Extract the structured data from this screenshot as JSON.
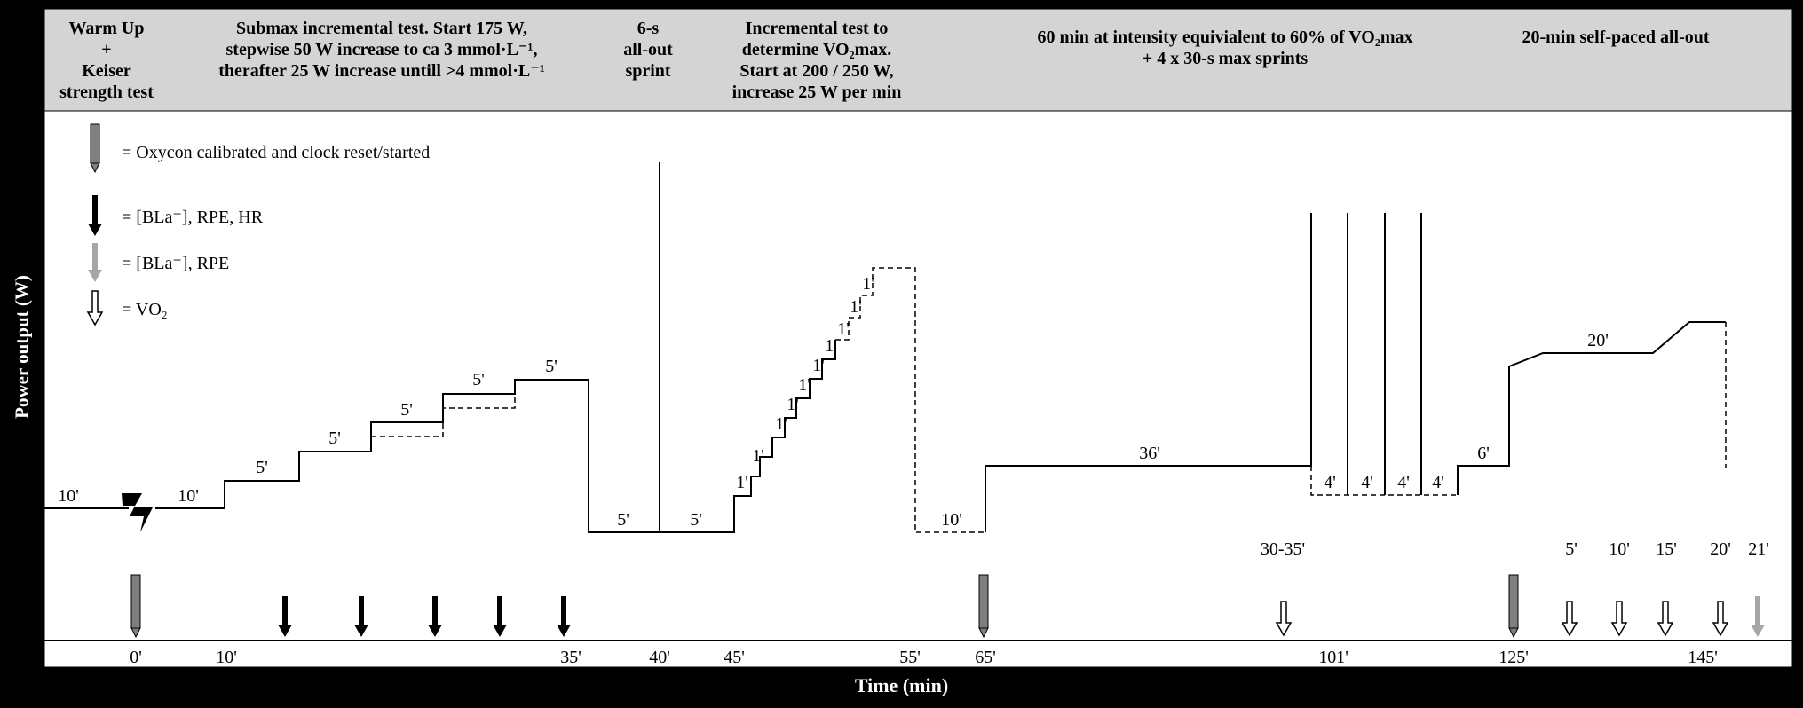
{
  "y_axis_label": "Power output (W)",
  "x_axis_label": "Time (min)",
  "header": {
    "warmup": [
      "Warm Up",
      "+",
      "Keiser",
      "strength test"
    ],
    "submax": [
      "Submax incremental test. Start 175 W,",
      "stepwise 50 W increase to ca 3 mmol·L⁻¹,",
      "therafter 25 W increase untill >4 mmol·L⁻¹"
    ],
    "sprint": [
      "6-s",
      "all-out",
      "sprint"
    ],
    "incremental": [
      "Incremental test to",
      "determine VO₂max.",
      "Start at 200 / 250 W,",
      "increase 25 W per min"
    ],
    "sixty": [
      "60 min at intensity equivialent to 60% of VO₂max",
      "+ 4 x 30-s max sprints"
    ],
    "selfpaced": [
      "20-min self-paced all-out"
    ]
  },
  "legend": {
    "oxycon": "= Oxycon calibrated and clock reset/started",
    "bla_rpe_hr": "= [BLa⁻], RPE, HR",
    "bla_rpe": "= [BLa⁻], RPE",
    "vo2": "= VO₂"
  },
  "segment_labels": [
    "10'",
    "10'",
    "5'",
    "5'",
    "5'",
    "5'",
    "5'",
    "5'",
    "5'",
    "1'",
    "1'",
    "1'",
    "1'",
    "1'",
    "1'",
    "1'",
    "1'",
    "1'",
    "1'",
    "10'",
    "36'",
    "4'",
    "4'",
    "4'",
    "4'",
    "6'",
    "20'"
  ],
  "sample_labels": [
    "30-35'",
    "5'",
    "10'",
    "15'",
    "20'",
    "21'"
  ],
  "time_ticks": [
    "0'",
    "10'",
    "35'",
    "40'",
    "45'",
    "55'",
    "65'",
    "101'",
    "125'",
    "145'"
  ],
  "colors": {
    "header_bg": "#d4d4d4",
    "oxycon_grey": "#7f7f7f",
    "bla_rpe_grey": "#a6a6a6",
    "line": "#000000"
  }
}
